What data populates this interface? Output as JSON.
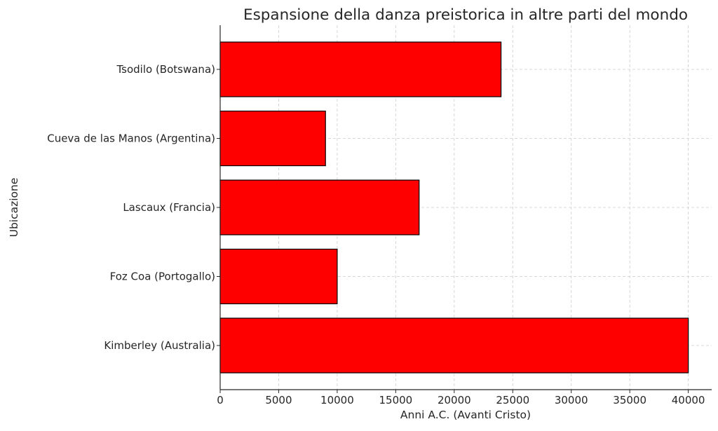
{
  "chart_data": {
    "type": "bar",
    "orientation": "horizontal",
    "title": "Espansione della danza preistorica in altre parti del mondo",
    "xlabel": "Anni A.C. (Avanti Cristo)",
    "ylabel": "Ubicazione",
    "categories": [
      "Kimberley (Australia)",
      "Foz Coa (Portogallo)",
      "Lascaux (Francia)",
      "Cueva de las Manos (Argentina)",
      "Tsodilo (Botswana)"
    ],
    "values": [
      40000,
      10000,
      17000,
      9000,
      24000
    ],
    "xlim": [
      0,
      42000
    ],
    "xticks": [
      0,
      5000,
      10000,
      15000,
      20000,
      25000,
      30000,
      35000,
      40000
    ],
    "bar_color": "#ff0000",
    "edge_color": "#000000",
    "grid": true
  }
}
